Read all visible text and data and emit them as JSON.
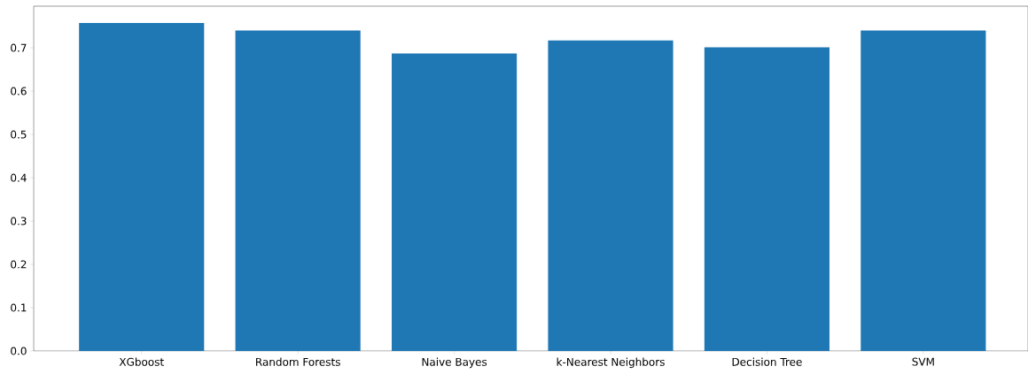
{
  "chart_data": {
    "type": "bar",
    "categories": [
      "XGboost",
      "Random Forests",
      "Naive Bayes",
      "k-Nearest Neighbors",
      "Decision Tree",
      "SVM"
    ],
    "values": [
      0.757,
      0.74,
      0.687,
      0.717,
      0.701,
      0.74
    ],
    "color": "#1f77b4",
    "ylim": [
      0,
      0.796
    ],
    "yticks": [
      {
        "value": 0,
        "label": "0.0"
      },
      0.1,
      0.2,
      0.3,
      0.4,
      0.5,
      0.6,
      0.7
    ],
    "grid": false
  }
}
